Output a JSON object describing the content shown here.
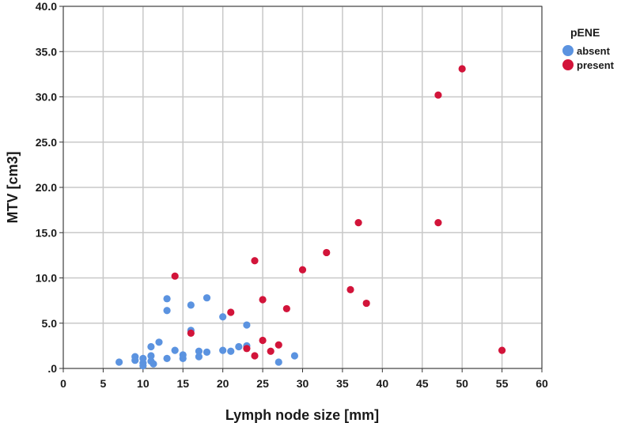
{
  "chart_data": {
    "type": "scatter",
    "xlabel": "Lymph node size [mm]",
    "ylabel": "MTV [cm3]",
    "xlim": [
      0,
      60
    ],
    "ylim": [
      0,
      40
    ],
    "x_ticks": [
      "0",
      "5",
      "10",
      "15",
      "20",
      "25",
      "30",
      "35",
      "40",
      "45",
      "50",
      "55",
      "60"
    ],
    "y_ticks": [
      ".0",
      "5.0",
      "10.0",
      "15.0",
      "20.0",
      "25.0",
      "30.0",
      "35.0",
      "40.0"
    ],
    "grid": true,
    "legend": {
      "title": "pENE",
      "position": "top-right"
    },
    "series": [
      {
        "name": "absent",
        "color": "#5b93e0",
        "points": [
          [
            7,
            0.7
          ],
          [
            9,
            1.3
          ],
          [
            9,
            0.9
          ],
          [
            10,
            1.1
          ],
          [
            10,
            0.6
          ],
          [
            10,
            0.3
          ],
          [
            11,
            2.4
          ],
          [
            11,
            1.4
          ],
          [
            11,
            0.8
          ],
          [
            11.3,
            0.5
          ],
          [
            12,
            2.9
          ],
          [
            13,
            7.7
          ],
          [
            13,
            6.4
          ],
          [
            13,
            1.1
          ],
          [
            14,
            2.0
          ],
          [
            15,
            1.5
          ],
          [
            15,
            1.1
          ],
          [
            16,
            7.0
          ],
          [
            16,
            4.2
          ],
          [
            17,
            1.9
          ],
          [
            17,
            1.3
          ],
          [
            18,
            7.8
          ],
          [
            18,
            1.8
          ],
          [
            20,
            5.7
          ],
          [
            20,
            2.0
          ],
          [
            21,
            1.9
          ],
          [
            22,
            2.4
          ],
          [
            23,
            4.8
          ],
          [
            23,
            2.5
          ],
          [
            27,
            0.7
          ],
          [
            29,
            1.4
          ]
        ]
      },
      {
        "name": "present",
        "color": "#d2143a",
        "points": [
          [
            14,
            10.2
          ],
          [
            16,
            3.9
          ],
          [
            21,
            6.2
          ],
          [
            23,
            2.2
          ],
          [
            24,
            11.9
          ],
          [
            24,
            1.4
          ],
          [
            25,
            7.6
          ],
          [
            25,
            3.1
          ],
          [
            26,
            1.9
          ],
          [
            27,
            2.6
          ],
          [
            28,
            6.6
          ],
          [
            30,
            10.9
          ],
          [
            33,
            12.8
          ],
          [
            36,
            8.7
          ],
          [
            37,
            16.1
          ],
          [
            38,
            7.2
          ],
          [
            47,
            30.2
          ],
          [
            47,
            16.1
          ],
          [
            50,
            33.1
          ],
          [
            55,
            2.0
          ]
        ]
      }
    ]
  }
}
